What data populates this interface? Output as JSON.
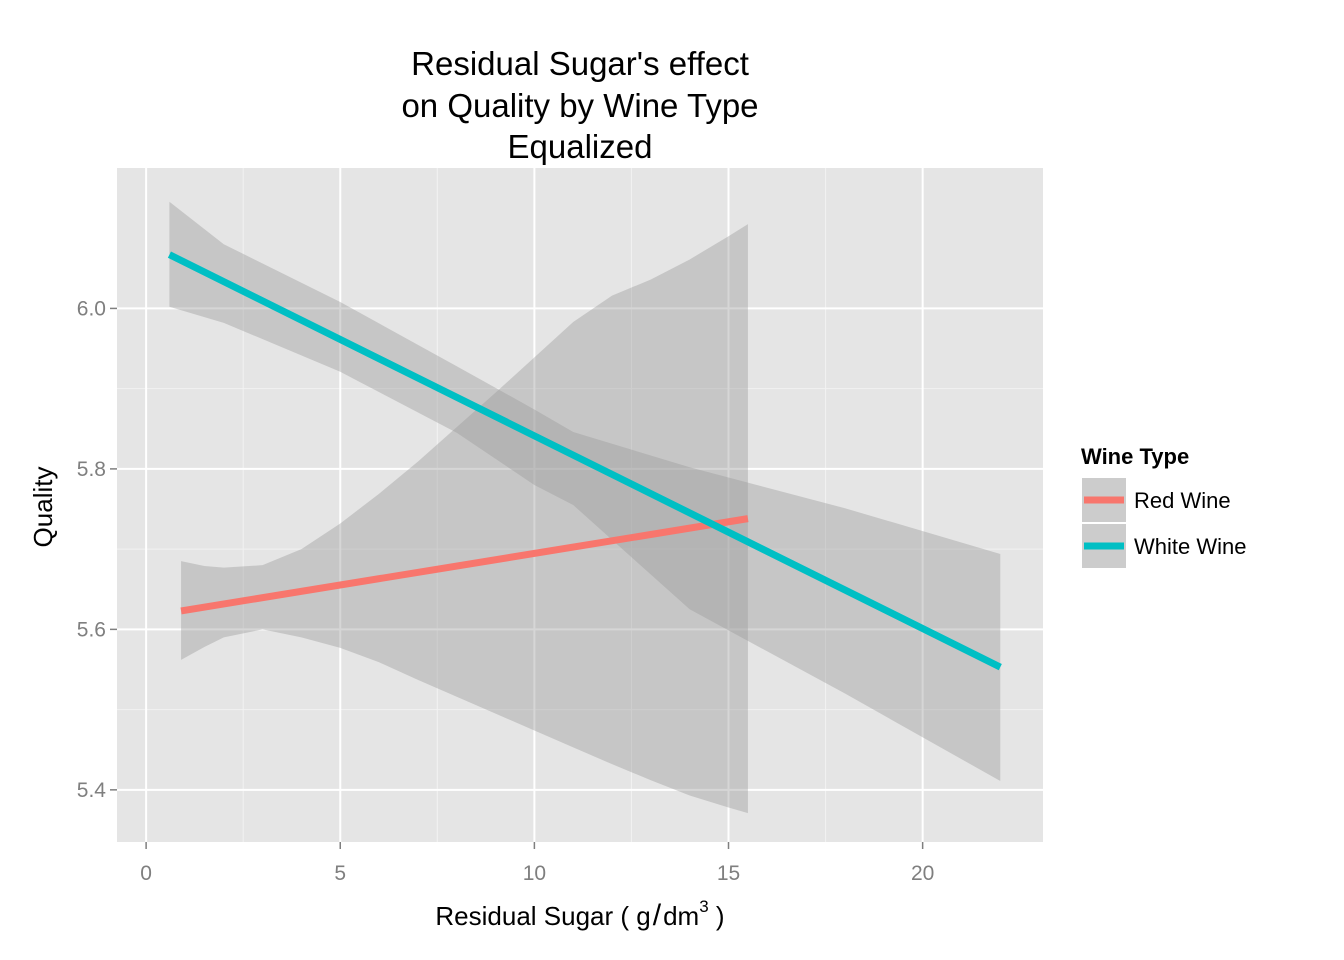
{
  "chart_data": {
    "type": "line",
    "title_lines": [
      "Residual Sugar's effect",
      "on Quality by Wine Type",
      "Equalized"
    ],
    "xlabel": {
      "main": "Residual Sugar ( g",
      "slash": "/",
      "unit": "dm",
      "sup": "3",
      "close": " )"
    },
    "ylabel": "Quality",
    "xlim": [
      -0.75,
      23.1
    ],
    "ylim": [
      5.335,
      6.175
    ],
    "x_ticks": [
      0,
      5,
      10,
      15,
      20
    ],
    "x_tick_labels": [
      "0",
      "5",
      "10",
      "15",
      "20"
    ],
    "y_ticks": [
      5.4,
      5.6,
      5.8,
      6.0
    ],
    "y_tick_labels": [
      "5.4",
      "5.6",
      "5.8",
      "6.0"
    ],
    "grid": true,
    "legend": {
      "title": "Wine Type",
      "position": "right"
    },
    "series": [
      {
        "name": "Red Wine",
        "color": "#F8766D",
        "x": [
          0.9,
          15.5
        ],
        "y": [
          5.623,
          5.738
        ],
        "ci_x": [
          0.9,
          1.5,
          2.0,
          3.0,
          4.0,
          5.0,
          6.0,
          7.0,
          8.0,
          9.0,
          10.0,
          11.0,
          12.0,
          13.0,
          14.0,
          15.0,
          15.5
        ],
        "ci_upper": [
          5.685,
          5.679,
          5.677,
          5.68,
          5.7,
          5.732,
          5.769,
          5.809,
          5.852,
          5.895,
          5.939,
          5.983,
          6.016,
          6.036,
          6.061,
          6.09,
          6.105
        ],
        "ci_lower": [
          5.562,
          5.578,
          5.59,
          5.6,
          5.59,
          5.577,
          5.559,
          5.537,
          5.516,
          5.495,
          5.474,
          5.453,
          5.432,
          5.412,
          5.393,
          5.378,
          5.371
        ]
      },
      {
        "name": "White Wine",
        "color": "#00BFC4",
        "x": [
          0.6,
          22.0
        ],
        "y": [
          6.067,
          5.553
        ],
        "ci_x": [
          0.6,
          2.0,
          5.0,
          8.0,
          10.0,
          11.0,
          14.0,
          18.0,
          22.0
        ],
        "ci_upper": [
          6.133,
          6.08,
          6.008,
          5.928,
          5.874,
          5.846,
          5.802,
          5.751,
          5.694
        ],
        "ci_lower": [
          6.002,
          5.982,
          5.921,
          5.845,
          5.78,
          5.755,
          5.625,
          5.52,
          5.411
        ]
      }
    ],
    "background_color": "#E5E5E5",
    "band_color": "#999999"
  }
}
